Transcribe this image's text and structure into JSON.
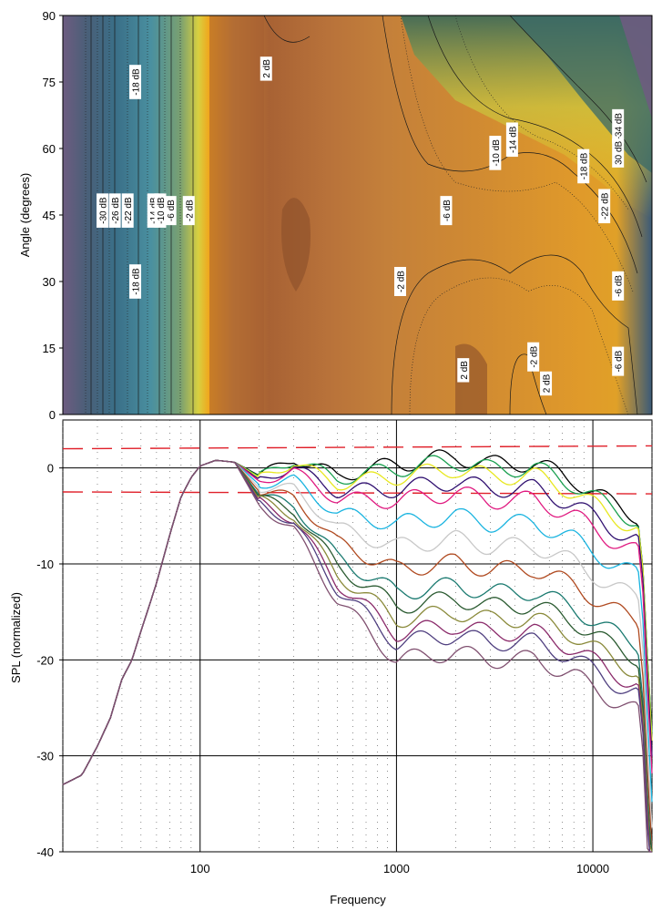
{
  "chart_data": [
    {
      "type": "heatmap",
      "title": "",
      "xlabel": "",
      "ylabel": "Angle (degrees)",
      "ylim": [
        0,
        90
      ],
      "y_ticks": [
        "0",
        "15",
        "30",
        "45",
        "60",
        "75",
        "90"
      ],
      "x_scale": "log",
      "xlim": [
        20,
        20000
      ],
      "color_scale": [
        "#6d5c80",
        "#2f6480",
        "#4f90a8",
        "#e8dc2e",
        "#f2a21a",
        "#c47f38",
        "#a85f32"
      ],
      "contour_labels": [
        {
          "label": "-30 dB",
          "x": 32,
          "y": 46
        },
        {
          "label": "-26 dB",
          "x": 37,
          "y": 46
        },
        {
          "label": "-22 dB",
          "x": 43,
          "y": 46
        },
        {
          "label": "-18 dB",
          "x": 47,
          "y": 75
        },
        {
          "label": "-18 dB",
          "x": 47,
          "y": 30
        },
        {
          "label": "-14 dB",
          "x": 58,
          "y": 46
        },
        {
          "label": "-10 dB",
          "x": 63,
          "y": 46
        },
        {
          "label": "-6 dB",
          "x": 71,
          "y": 46
        },
        {
          "label": "-2 dB",
          "x": 88,
          "y": 46
        },
        {
          "label": "2 dB",
          "x": 218,
          "y": 78
        },
        {
          "label": "-2 dB",
          "x": 1050,
          "y": 30
        },
        {
          "label": "-6 dB",
          "x": 1800,
          "y": 46
        },
        {
          "label": "-10 dB",
          "x": 3200,
          "y": 59
        },
        {
          "label": "-14 dB",
          "x": 3900,
          "y": 62
        },
        {
          "label": "2 dB",
          "x": 2200,
          "y": 10
        },
        {
          "label": "-2 dB",
          "x": 5000,
          "y": 13
        },
        {
          "label": "2 dB",
          "x": 5800,
          "y": 7
        },
        {
          "label": "-18 dB",
          "x": 9000,
          "y": 56
        },
        {
          "label": "-22 dB",
          "x": 11500,
          "y": 47
        },
        {
          "label": "-34 dB",
          "x": 13500,
          "y": 65
        },
        {
          "label": "30 dB",
          "x": 13500,
          "y": 59
        },
        {
          "label": "-6 dB",
          "x": 13500,
          "y": 29
        },
        {
          "label": "-6 dB",
          "x": 13500,
          "y": 12
        }
      ]
    },
    {
      "type": "line",
      "title": "",
      "xlabel": "Frequency",
      "ylabel": "SPL (normalized)",
      "x_scale": "log",
      "xlim": [
        20,
        20000
      ],
      "ylim": [
        -40,
        5
      ],
      "x_ticks": [
        "100",
        "1000",
        "10000"
      ],
      "y_ticks": [
        "0",
        "-10",
        "-20",
        "-30",
        "-40"
      ],
      "reference_lines": [
        2,
        -2.5
      ],
      "base_curve": {
        "x": [
          20,
          25,
          30,
          35,
          40,
          45,
          50,
          60,
          70,
          80,
          90,
          100,
          120,
          150,
          200,
          300,
          500,
          1000,
          2000,
          3000,
          5000,
          8000,
          12000,
          15000,
          17000,
          18000,
          19000,
          20000
        ],
        "y": [
          -33,
          -32,
          -29,
          -26,
          -22,
          -20,
          -17,
          -12,
          -7,
          -3,
          -1,
          0.2,
          0.8,
          0.6,
          -0.8,
          1,
          -0.8,
          0.4,
          1.2,
          0.4,
          0.5,
          -1.2,
          -3.5,
          -4.5,
          -5,
          -10,
          -20,
          -28
        ]
      },
      "series": [
        {
          "name": "",
          "color": "#000000",
          "offset": 0
        },
        {
          "name": "",
          "color": "#1aa050",
          "offset": -0.5
        },
        {
          "name": "",
          "color": "#e8e820",
          "offset": -1.3
        },
        {
          "name": "",
          "color": "#301070",
          "offset": -2.6
        },
        {
          "name": "",
          "color": "#e01a80",
          "offset": -3.8
        },
        {
          "name": "",
          "color": "#1ab4e0",
          "offset": -6.2
        },
        {
          "name": "",
          "color": "#c8c8c8",
          "offset": -8.6
        },
        {
          "name": "",
          "color": "#b04a20",
          "offset": -11
        },
        {
          "name": "",
          "color": "#1a7a70",
          "offset": -13.4
        },
        {
          "name": "",
          "color": "#2a5a30",
          "offset": -14.8
        },
        {
          "name": "",
          "color": "#8a8a3a",
          "offset": -16.2
        },
        {
          "name": "",
          "color": "#8a2a6a",
          "offset": -17.6
        },
        {
          "name": "",
          "color": "#504080",
          "offset": -18.6
        },
        {
          "name": "",
          "color": "#805070",
          "offset": -20.4
        }
      ]
    }
  ]
}
